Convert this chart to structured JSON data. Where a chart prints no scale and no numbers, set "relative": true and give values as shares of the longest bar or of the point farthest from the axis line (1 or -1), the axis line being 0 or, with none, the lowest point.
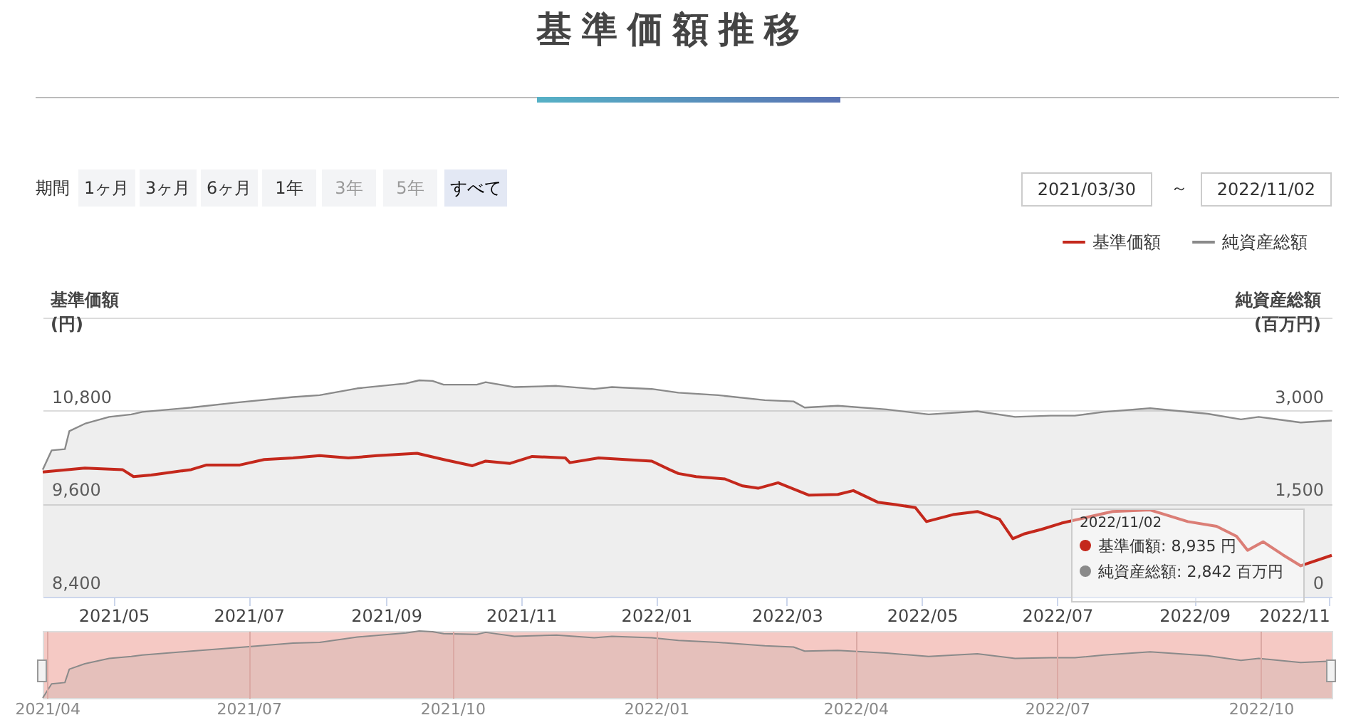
{
  "chart_data": [
    {
      "type": "line",
      "title": "基準価額推移",
      "ylabel": "基準価額\n(円)",
      "y2label": "純資産総額\n(百万円)",
      "legend": "top right",
      "grid": "y",
      "xlim": [
        "2021-03-30",
        "2022-11-02"
      ],
      "xticks": [
        {
          "value": "2021-05-01",
          "label": "2021/05"
        },
        {
          "value": "2021-07-01",
          "label": "2021/07"
        },
        {
          "value": "2021-09-01",
          "label": "2021/09"
        },
        {
          "value": "2021-11-01",
          "label": "2021/11"
        },
        {
          "value": "2022-01-01",
          "label": "2022/01"
        },
        {
          "value": "2022-03-01",
          "label": "2022/03"
        },
        {
          "value": "2022-05-01",
          "label": "2022/05"
        },
        {
          "value": "2022-07-01",
          "label": "2022/07"
        },
        {
          "value": "2022-09-01",
          "label": "2022/09"
        },
        {
          "value": "2022-11-01",
          "label": "2022/11"
        }
      ],
      "ylim": [
        8400,
        12000
      ],
      "yticks": [
        {
          "value": 8400,
          "label": "8,400"
        },
        {
          "value": 9600,
          "label": "9,600"
        },
        {
          "value": 10800,
          "label": "10,800"
        },
        {
          "value": 12000,
          "label": null
        }
      ],
      "y2lim": [
        0,
        4500
      ],
      "y2ticks": [
        0,
        {
          "value": 1500,
          "label": "1,500"
        },
        {
          "value": 3000,
          "label": "3,000"
        },
        {
          "value": 4500,
          "label": null
        }
      ],
      "annotations": [
        "期間",
        "1ヶ月",
        "3ヶ月",
        "6ヶ月",
        "1年",
        "3年",
        "5年",
        "すべて",
        "2021/03/30",
        "～",
        "2022/11/02",
        "2022/11/02",
        "基準価額: 8,935 円",
        "純資産総額: 2,842 百万円"
      ],
      "series": [
        {
          "name": "基準価額",
          "color": "#c4281c",
          "x": [
            "2021-03-30",
            "2021-04-18",
            "2021-05-05",
            "2021-05-10",
            "2021-05-18",
            "2021-06-05",
            "2021-06-12",
            "2021-06-27",
            "2021-07-08",
            "2021-07-21",
            "2021-08-02",
            "2021-08-15",
            "2021-08-28",
            "2021-09-15",
            "2021-09-27",
            "2021-10-10",
            "2021-10-16",
            "2021-10-27",
            "2021-11-06",
            "2021-11-21",
            "2021-11-23",
            "2021-12-06",
            "2021-12-30",
            "2022-01-07",
            "2022-01-11",
            "2022-01-19",
            "2022-02-01",
            "2022-02-09",
            "2022-02-16",
            "2022-02-25",
            "2022-03-11",
            "2022-03-24",
            "2022-03-31",
            "2022-04-11",
            "2022-04-19",
            "2022-04-28",
            "2022-05-03",
            "2022-05-15",
            "2022-05-26",
            "2022-06-05",
            "2022-06-11",
            "2022-06-16",
            "2022-06-24",
            "2022-07-03",
            "2022-07-26",
            "2022-08-12",
            "2022-08-29",
            "2022-09-11",
            "2022-09-20",
            "2022-09-25",
            "2022-10-02",
            "2022-10-11",
            "2022-10-19",
            "2022-11-02"
          ],
          "values": [
            10010,
            10060,
            10040,
            9950,
            9970,
            10040,
            10100,
            10100,
            10170,
            10190,
            10220,
            10190,
            10220,
            10250,
            10170,
            10090,
            10150,
            10120,
            10210,
            10190,
            10130,
            10190,
            10150,
            10040,
            9990,
            9950,
            9920,
            9830,
            9800,
            9870,
            9710,
            9720,
            9770,
            9620,
            9590,
            9550,
            9370,
            9460,
            9500,
            9400,
            9150,
            9210,
            9270,
            9350,
            9500,
            9520,
            9370,
            9310,
            9180,
            9000,
            9110,
            8940,
            8800,
            8935
          ]
        },
        {
          "name": "純資産総額",
          "type": "area",
          "axis": "y2",
          "color": "#8a8a8a",
          "x": [
            "2021-03-30",
            "2021-04-03",
            "2021-04-09",
            "2021-04-11",
            "2021-04-18",
            "2021-04-29",
            "2021-05-09",
            "2021-05-14",
            "2021-06-05",
            "2021-06-25",
            "2021-07-21",
            "2021-08-02",
            "2021-08-19",
            "2021-09-10",
            "2021-09-16",
            "2021-09-22",
            "2021-09-27",
            "2021-10-12",
            "2021-10-16",
            "2021-10-29",
            "2021-11-17",
            "2021-12-04",
            "2021-12-12",
            "2021-12-30",
            "2022-01-11",
            "2022-01-29",
            "2022-02-19",
            "2022-03-04",
            "2022-03-09",
            "2022-03-24",
            "2022-04-15",
            "2022-05-04",
            "2022-05-26",
            "2022-06-12",
            "2022-06-28",
            "2022-07-09",
            "2022-07-22",
            "2022-08-12",
            "2022-09-07",
            "2022-09-22",
            "2022-09-30",
            "2022-10-19",
            "2022-11-02"
          ],
          "values": [
            2050,
            2360,
            2380,
            2670,
            2790,
            2900,
            2940,
            2980,
            3050,
            3130,
            3220,
            3250,
            3360,
            3440,
            3490,
            3480,
            3420,
            3420,
            3460,
            3380,
            3400,
            3350,
            3380,
            3350,
            3290,
            3250,
            3170,
            3150,
            3050,
            3080,
            3020,
            2940,
            2990,
            2900,
            2920,
            2920,
            2980,
            3040,
            2950,
            2860,
            2900,
            2810,
            2842
          ]
        }
      ]
    },
    {
      "type": "area",
      "relative": true,
      "color": "#8a8a8a",
      "grid": "x",
      "xlim": [
        "2021-03-30",
        "2022-11-02"
      ],
      "xticks": [
        {
          "value": "2021-04-01",
          "label": "2021/04"
        },
        {
          "value": "2021-07-01",
          "label": "2021/07"
        },
        {
          "value": "2021-10-01",
          "label": "2021/10"
        },
        {
          "value": "2022-01-01",
          "label": "2022/01"
        },
        {
          "value": "2022-04-01",
          "label": "2022/04"
        },
        {
          "value": "2022-07-01",
          "label": "2022/07"
        },
        {
          "value": "2022-10-01",
          "label": "2022/10"
        }
      ],
      "x": [
        "2021-03-30",
        "2021-04-03",
        "2021-04-09",
        "2021-04-11",
        "2021-04-18",
        "2021-04-29",
        "2021-05-09",
        "2021-05-14",
        "2021-06-05",
        "2021-06-25",
        "2021-07-21",
        "2021-08-02",
        "2021-08-19",
        "2021-09-10",
        "2021-09-16",
        "2021-09-22",
        "2021-09-27",
        "2021-10-12",
        "2021-10-16",
        "2021-10-29",
        "2021-11-17",
        "2021-12-04",
        "2021-12-12",
        "2021-12-30",
        "2022-01-11",
        "2022-01-29",
        "2022-02-19",
        "2022-03-04",
        "2022-03-09",
        "2022-03-24",
        "2022-04-15",
        "2022-05-04",
        "2022-05-26",
        "2022-06-12",
        "2022-06-28",
        "2022-07-09",
        "2022-07-22",
        "2022-08-12",
        "2022-09-07",
        "2022-09-22",
        "2022-09-30",
        "2022-10-19",
        "2022-11-02"
      ],
      "values": [
        0,
        0.21,
        0.23,
        0.43,
        0.51,
        0.59,
        0.62,
        0.64,
        0.7,
        0.75,
        0.82,
        0.83,
        0.91,
        0.97,
        1,
        0.99,
        0.96,
        0.95,
        0.98,
        0.92,
        0.94,
        0.9,
        0.92,
        0.9,
        0.86,
        0.83,
        0.78,
        0.76,
        0.7,
        0.71,
        0.67,
        0.62,
        0.66,
        0.59,
        0.6,
        0.6,
        0.64,
        0.69,
        0.63,
        0.56,
        0.59,
        0.53,
        0.55
      ]
    }
  ]
}
